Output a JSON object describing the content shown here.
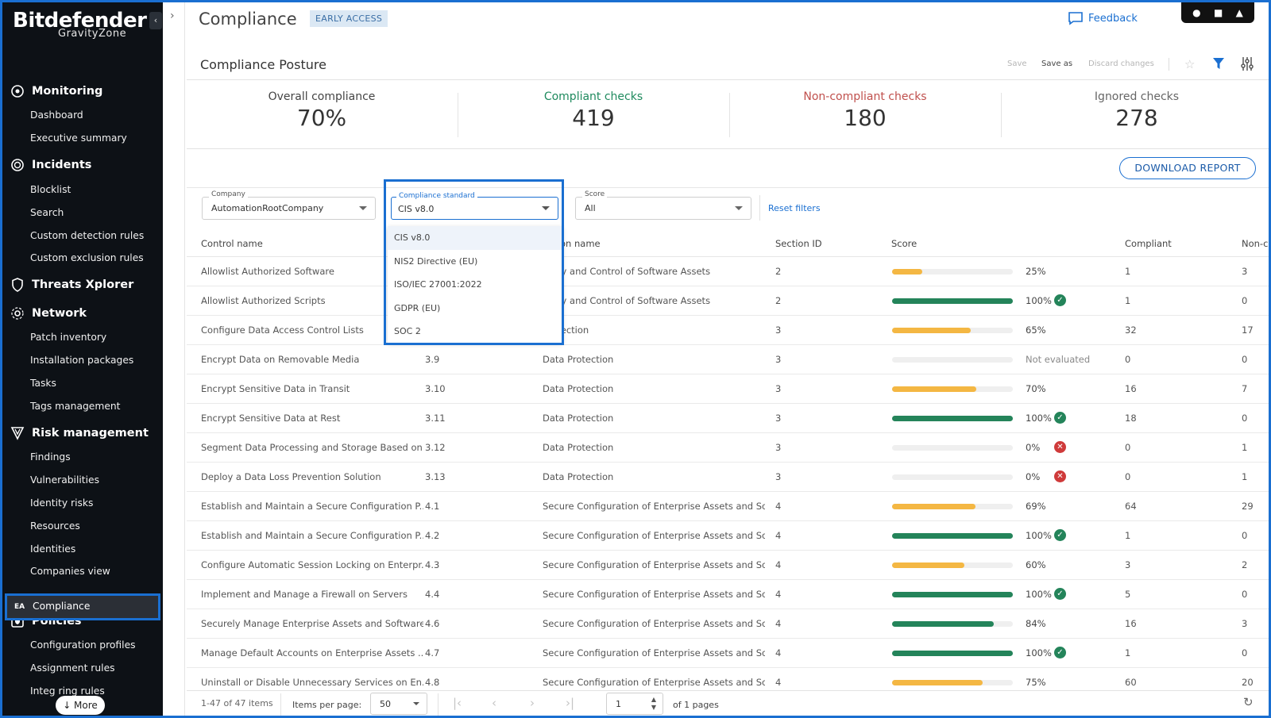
{
  "sidebar": {
    "logo": "Bitdefender",
    "logo_sub": "GravityZone",
    "sections": [
      {
        "label": "Monitoring",
        "items": [
          "Dashboard",
          "Executive summary"
        ]
      },
      {
        "label": "Incidents",
        "items": [
          "Blocklist",
          "Search",
          "Custom detection rules",
          "Custom exclusion rules"
        ]
      },
      {
        "label": "Threats Xplorer",
        "items": []
      },
      {
        "label": "Network",
        "items": [
          "Patch inventory",
          "Installation packages",
          "Tasks",
          "Tags management"
        ]
      },
      {
        "label": "Risk management",
        "items": [
          "Findings",
          "Vulnerabilities",
          "Identity risks",
          "Resources",
          "Identities",
          "Companies view"
        ]
      },
      {
        "label": "Policies",
        "items": [
          "Configuration profiles",
          "Assignment rules",
          "Integ    ring rules"
        ]
      }
    ],
    "active": {
      "tag": "EA",
      "label": "Compliance"
    },
    "more": "↓ More"
  },
  "header": {
    "title": "Compliance",
    "badge": "EARLY ACCESS",
    "feedback": "Feedback"
  },
  "toolbar": {
    "title": "Compliance Posture",
    "save": "Save",
    "save_as": "Save as",
    "discard": "Discard changes"
  },
  "summary": [
    {
      "label": "Overall compliance",
      "value": "70%"
    },
    {
      "label": "Compliant checks",
      "value": "419"
    },
    {
      "label": "Non-compliant checks",
      "value": "180"
    },
    {
      "label": "Ignored checks",
      "value": "278"
    }
  ],
  "download": "DOWNLOAD REPORT",
  "filters": {
    "company": {
      "label": "Company",
      "value": "AutomationRootCompany"
    },
    "standard": {
      "label": "Compliance standard",
      "value": "CIS v8.0",
      "options": [
        "CIS v8.0",
        "NIS2 Directive (EU)",
        "ISO/IEC 27001:2022",
        "GDPR (EU)",
        "SOC 2"
      ]
    },
    "score": {
      "label": "Score",
      "value": "All"
    },
    "reset": "Reset filters"
  },
  "table": {
    "headers": {
      "control": "Control name",
      "section_name": "on name",
      "section_id": "Section ID",
      "score": "Score",
      "compliant": "Compliant",
      "non": "Non-c"
    },
    "rows": [
      {
        "name": "Allowlist Authorized Software",
        "id": "",
        "section": "ntory and Control of Software Assets",
        "sid": "2",
        "score": 25,
        "pct": "25%",
        "status": "",
        "compliant": "1",
        "non": "3"
      },
      {
        "name": "Allowlist Authorized Scripts",
        "id": "",
        "section": "ntory and Control of Software Assets",
        "sid": "2",
        "score": 100,
        "pct": "100%",
        "status": "ok",
        "compliant": "1",
        "non": "0"
      },
      {
        "name": "Configure Data Access Control Lists",
        "id": "",
        "section": "Protection",
        "sid": "3",
        "score": 65,
        "pct": "65%",
        "status": "",
        "compliant": "32",
        "non": "17"
      },
      {
        "name": "Encrypt Data on Removable Media",
        "id": "3.9",
        "section": "Data Protection",
        "sid": "3",
        "score": 0,
        "pct": "Not evaluated",
        "status": "ne",
        "compliant": "0",
        "non": "0"
      },
      {
        "name": "Encrypt Sensitive Data in Transit",
        "id": "3.10",
        "section": "Data Protection",
        "sid": "3",
        "score": 70,
        "pct": "70%",
        "status": "",
        "compliant": "16",
        "non": "7"
      },
      {
        "name": "Encrypt Sensitive Data at Rest",
        "id": "3.11",
        "section": "Data Protection",
        "sid": "3",
        "score": 100,
        "pct": "100%",
        "status": "ok",
        "compliant": "18",
        "non": "0"
      },
      {
        "name": "Segment Data Processing and Storage Based on...",
        "id": "3.12",
        "section": "Data Protection",
        "sid": "3",
        "score": 0,
        "pct": "0%",
        "status": "bad",
        "compliant": "0",
        "non": "1"
      },
      {
        "name": "Deploy a Data Loss Prevention Solution",
        "id": "3.13",
        "section": "Data Protection",
        "sid": "3",
        "score": 0,
        "pct": "0%",
        "status": "bad",
        "compliant": "0",
        "non": "1"
      },
      {
        "name": "Establish and Maintain a Secure Configuration P...",
        "id": "4.1",
        "section": "Secure Configuration of Enterprise Assets and Soft...",
        "sid": "4",
        "score": 69,
        "pct": "69%",
        "status": "",
        "compliant": "64",
        "non": "29"
      },
      {
        "name": "Establish and Maintain a Secure Configuration P...",
        "id": "4.2",
        "section": "Secure Configuration of Enterprise Assets and Soft...",
        "sid": "4",
        "score": 100,
        "pct": "100%",
        "status": "ok",
        "compliant": "1",
        "non": "0"
      },
      {
        "name": "Configure Automatic Session Locking on Enterpr...",
        "id": "4.3",
        "section": "Secure Configuration of Enterprise Assets and Soft...",
        "sid": "4",
        "score": 60,
        "pct": "60%",
        "status": "",
        "compliant": "3",
        "non": "2"
      },
      {
        "name": "Implement and Manage a Firewall on Servers",
        "id": "4.4",
        "section": "Secure Configuration of Enterprise Assets and Soft...",
        "sid": "4",
        "score": 100,
        "pct": "100%",
        "status": "ok",
        "compliant": "5",
        "non": "0"
      },
      {
        "name": "Securely Manage Enterprise Assets and Software",
        "id": "4.6",
        "section": "Secure Configuration of Enterprise Assets and Soft...",
        "sid": "4",
        "score": 84,
        "pct": "84%",
        "status": "",
        "compliant": "16",
        "non": "3"
      },
      {
        "name": "Manage Default Accounts on Enterprise Assets ...",
        "id": "4.7",
        "section": "Secure Configuration of Enterprise Assets and Soft...",
        "sid": "4",
        "score": 100,
        "pct": "100%",
        "status": "ok",
        "compliant": "1",
        "non": "0"
      },
      {
        "name": "Uninstall or Disable Unnecessary Services on En...",
        "id": "4.8",
        "section": "Secure Configuration of Enterprise Assets and Soft...",
        "sid": "4",
        "score": 75,
        "pct": "75%",
        "status": "",
        "compliant": "60",
        "non": "20"
      }
    ]
  },
  "footer": {
    "count": "1-47 of 47 items",
    "items_per_page_label": "Items per page:",
    "items_per_page": "50",
    "page": "1",
    "of_pages": "of 1 pages"
  },
  "colors": {
    "accent": "#1a6fd1",
    "green": "#24845a",
    "yellow": "#f4b743",
    "red": "#cf3a3a",
    "sidebar": "#0d1116"
  }
}
